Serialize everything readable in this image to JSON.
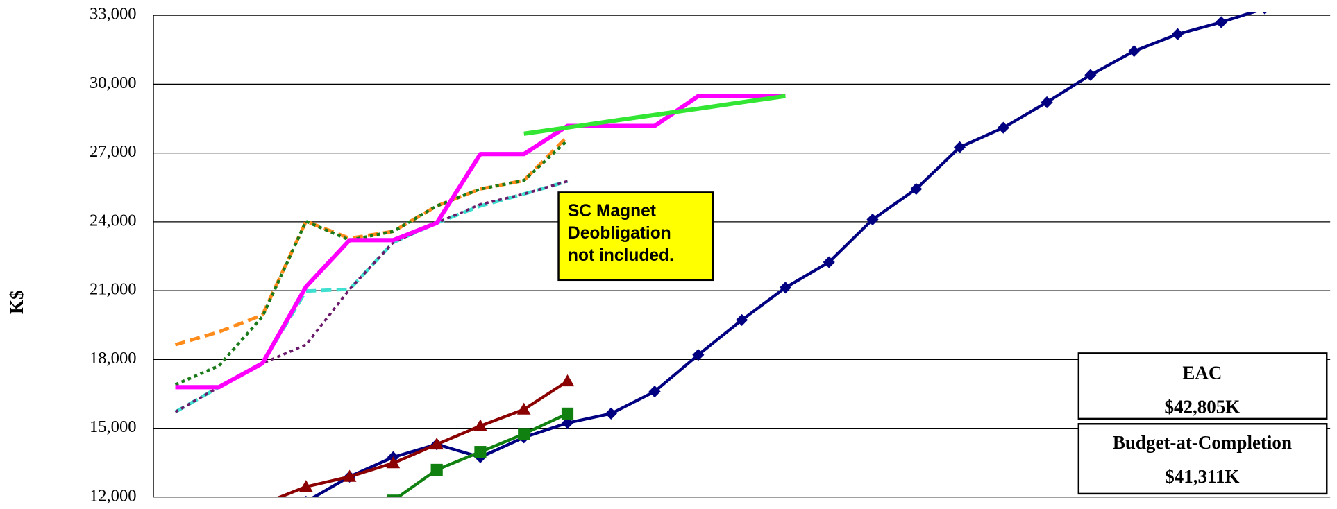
{
  "chart_data": {
    "type": "line",
    "y_label": "K$",
    "categories": [
      null,
      null,
      null,
      null,
      null,
      null,
      null,
      null,
      null,
      null,
      null,
      null,
      null,
      null,
      null,
      null,
      null,
      null,
      null,
      null,
      null,
      null,
      null,
      null,
      null,
      null,
      null
    ],
    "ylim": [
      12000,
      33000
    ],
    "yticks": [
      {
        "value": 12000,
        "label": "12,000"
      },
      {
        "value": 15000,
        "label": "15,000"
      },
      {
        "value": 18000,
        "label": "18,000"
      },
      {
        "value": 21000,
        "label": "21,000"
      },
      {
        "value": 24000,
        "label": "24,000"
      },
      {
        "value": 27000,
        "label": "27,000"
      },
      {
        "value": 30000,
        "label": "30,000"
      },
      {
        "value": 33000,
        "label": "33,000"
      }
    ],
    "grid": true,
    "series": [
      {
        "color": "#ff8c1a",
        "dash": "dashed",
        "line_width": 4,
        "marker": "none",
        "values": [
          18640,
          19200,
          19940,
          24020,
          23280,
          23580,
          24690,
          25430,
          25800,
          27730,
          null,
          null,
          null,
          null,
          null,
          null,
          null,
          null,
          null,
          null,
          null,
          null,
          null,
          null,
          null,
          null,
          null
        ]
      },
      {
        "color": "#1a7a1a",
        "dash": "dotted",
        "line_width": 3.5,
        "marker": "none",
        "values": [
          16900,
          17720,
          19870,
          24020,
          23200,
          23580,
          24690,
          25430,
          25800,
          27550,
          null,
          null,
          null,
          null,
          null,
          null,
          null,
          null,
          null,
          null,
          null,
          null,
          null,
          null,
          null,
          null,
          null
        ]
      },
      {
        "color": "#40e0d0",
        "dash": "dashed",
        "line_width": 4,
        "marker": "none",
        "values": [
          15710,
          16790,
          17830,
          20980,
          21060,
          23100,
          23950,
          24690,
          25210,
          25770,
          null,
          null,
          null,
          null,
          null,
          null,
          null,
          null,
          null,
          null,
          null,
          null,
          null,
          null,
          null,
          null,
          null
        ]
      },
      {
        "color": "#6b1a6b",
        "dash": "dotted",
        "line_width": 3,
        "marker": "none",
        "values": [
          15710,
          16790,
          17830,
          18640,
          21060,
          23100,
          23950,
          24760,
          25210,
          25770,
          null,
          null,
          null,
          null,
          null,
          null,
          null,
          null,
          null,
          null,
          null,
          null,
          null,
          null,
          null,
          null,
          null
        ]
      },
      {
        "color": "#ff00ff",
        "dash": "solid",
        "line_width": 5,
        "marker": "none",
        "values": [
          16790,
          16790,
          17830,
          21170,
          23200,
          23200,
          23950,
          26950,
          26950,
          28180,
          28180,
          28180,
          29480,
          29480,
          29480,
          null,
          null,
          null,
          null,
          null,
          null,
          null,
          null,
          null,
          null,
          null,
          null
        ]
      },
      {
        "color": "#33e633",
        "dash": "solid",
        "line_width": 5,
        "marker": "none",
        "values": [
          null,
          null,
          null,
          null,
          null,
          null,
          null,
          null,
          27840,
          28110,
          28390,
          28660,
          28930,
          29210,
          29480,
          null,
          null,
          null,
          null,
          null,
          null,
          null,
          null,
          null,
          null,
          null,
          null
        ]
      },
      {
        "color": "#000080",
        "dash": "solid",
        "line_width": 3.5,
        "marker": "diamond",
        "values": [
          null,
          null,
          null,
          11800,
          12890,
          13740,
          14300,
          13740,
          14600,
          15230,
          15640,
          16600,
          18200,
          19720,
          21130,
          22240,
          24100,
          25430,
          27250,
          28100,
          29210,
          30400,
          31440,
          32180,
          32700,
          33300,
          null
        ]
      },
      {
        "color": "#8b0000",
        "dash": "solid",
        "line_width": 3.5,
        "marker": "triangle",
        "values": [
          null,
          null,
          11700,
          12450,
          12890,
          13480,
          14300,
          15100,
          15820,
          17050,
          null,
          null,
          null,
          null,
          null,
          null,
          null,
          null,
          null,
          null,
          null,
          null,
          null,
          null,
          null,
          null,
          null
        ]
      },
      {
        "color": "#108010",
        "dash": "solid",
        "line_width": 3.5,
        "marker": "square",
        "values": [
          null,
          null,
          null,
          null,
          null,
          11850,
          13190,
          13970,
          14750,
          15640,
          null,
          null,
          null,
          null,
          null,
          null,
          null,
          null,
          null,
          null,
          null,
          null,
          null,
          null,
          null,
          null,
          null
        ]
      }
    ],
    "annotations": [
      {
        "lines": [
          "SC Magnet",
          "Deobligation",
          "not included."
        ],
        "background": "#ffff00"
      },
      {
        "lines": [
          "EAC",
          "$42,805K"
        ],
        "background": "#ffffff"
      },
      {
        "lines": [
          "Budget-at-Completion",
          "$41,311K"
        ],
        "background": "#ffffff"
      }
    ]
  }
}
